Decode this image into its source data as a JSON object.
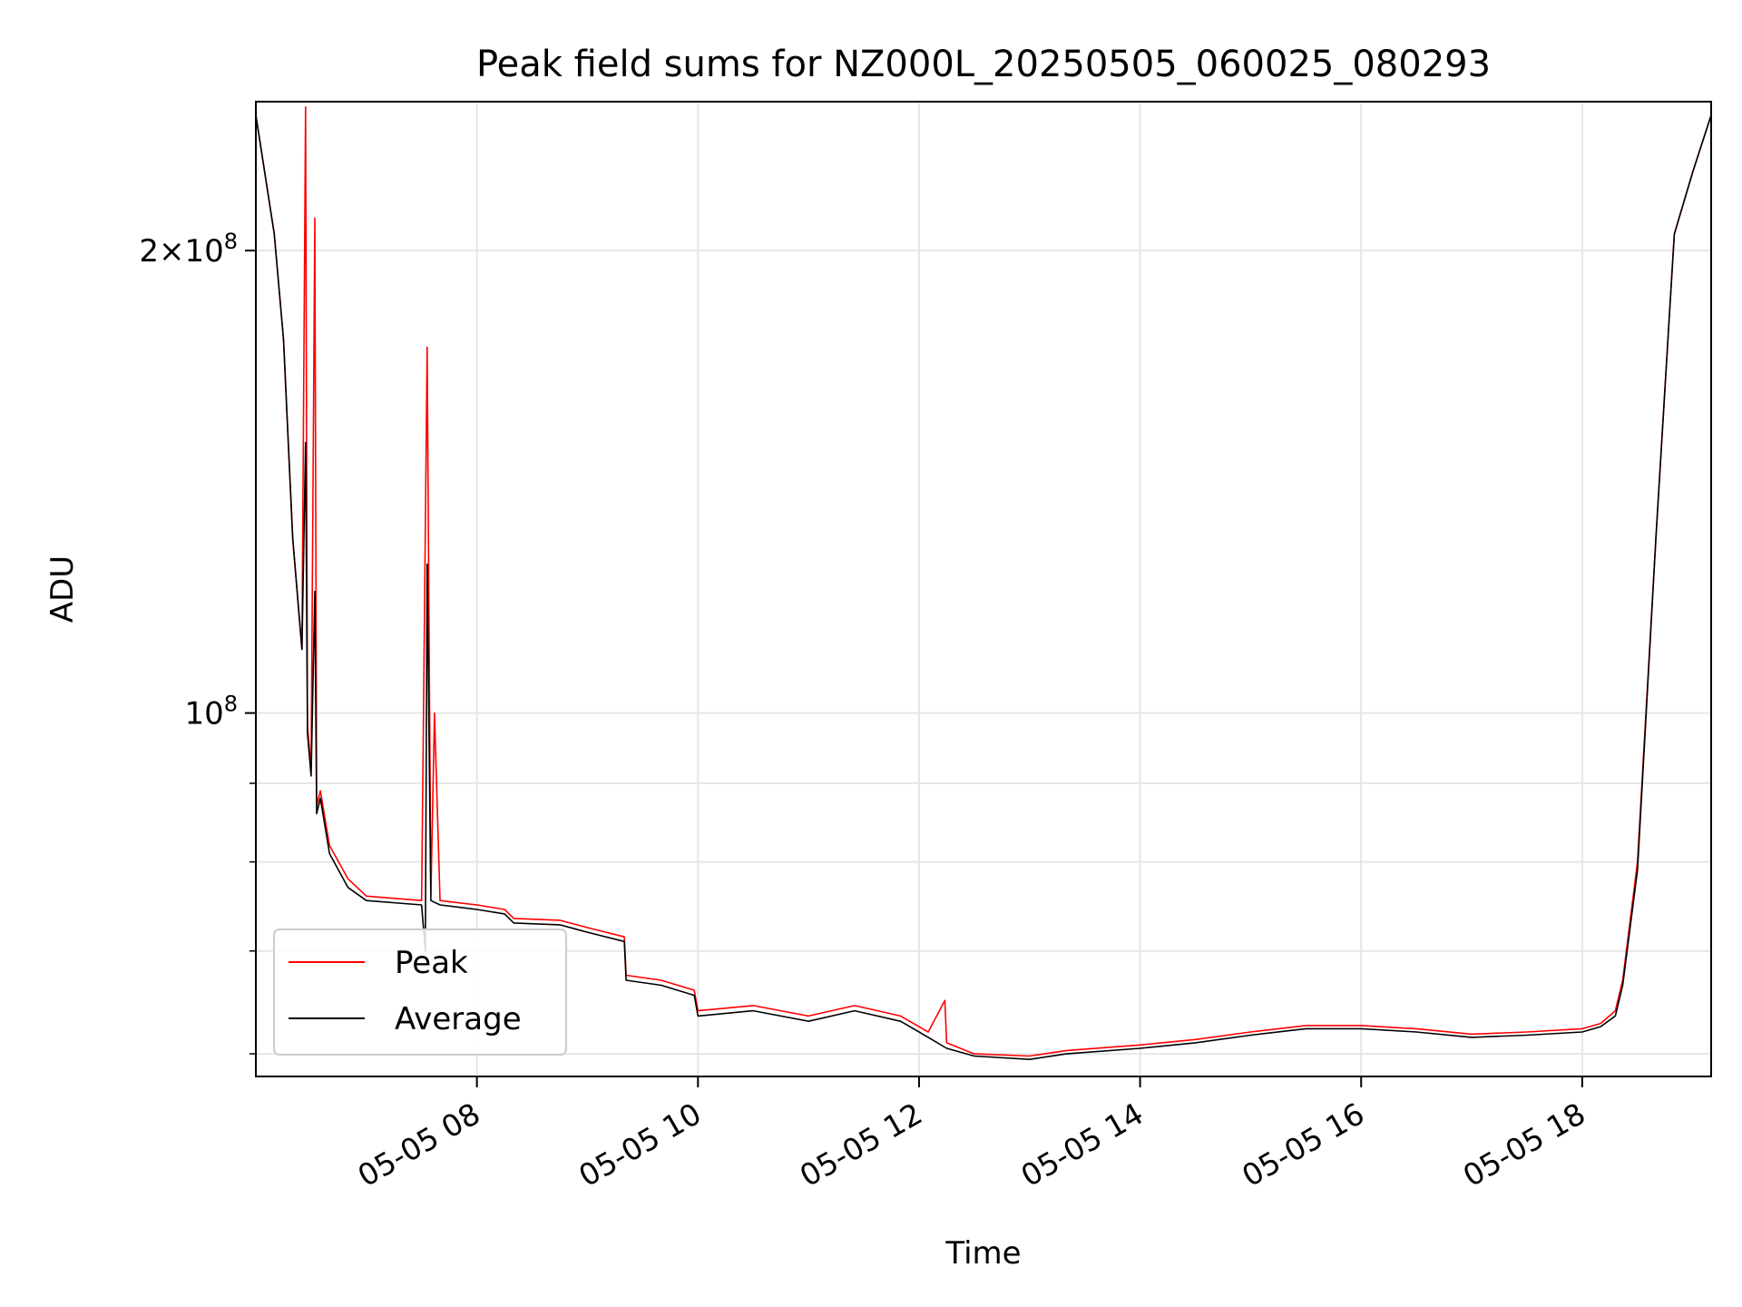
{
  "chart_data": {
    "type": "line",
    "title": "Peak field sums for NZ000L_20250505_060025_080293",
    "xlabel": "Time",
    "ylabel": "ADU",
    "yscale": "log",
    "xlim": [
      "2025-05-05 06:00",
      "2025-05-05 19:10"
    ],
    "ylim": [
      58000000,
      250000000
    ],
    "grid": true,
    "legend_position": "lower-left",
    "x_ticks": [
      {
        "value": "2025-05-05 08:00",
        "label": "05-05 08"
      },
      {
        "value": "2025-05-05 10:00",
        "label": "05-05 10"
      },
      {
        "value": "2025-05-05 12:00",
        "label": "05-05 12"
      },
      {
        "value": "2025-05-05 14:00",
        "label": "05-05 14"
      },
      {
        "value": "2025-05-05 16:00",
        "label": "05-05 16"
      },
      {
        "value": "2025-05-05 18:00",
        "label": "05-05 18"
      }
    ],
    "y_ticks": [
      {
        "value": 100000000,
        "base": "10",
        "exp": "8",
        "mult": ""
      },
      {
        "value": 200000000,
        "base": "10",
        "exp": "8",
        "mult": "2×"
      }
    ],
    "y_minor_ticks": [
      60000000,
      70000000,
      80000000,
      90000000
    ],
    "series": [
      {
        "name": "Peak",
        "color": "#ff0000",
        "points": [
          [
            "2025-05-05 06:00",
            245000000
          ],
          [
            "2025-05-05 06:10",
            205000000
          ],
          [
            "2025-05-05 06:15",
            175000000
          ],
          [
            "2025-05-05 06:20",
            130000000
          ],
          [
            "2025-05-05 06:25",
            110000000
          ],
          [
            "2025-05-05 06:27",
            248000000
          ],
          [
            "2025-05-05 06:28",
            98000000
          ],
          [
            "2025-05-05 06:30",
            92000000
          ],
          [
            "2025-05-05 06:32",
            210000000
          ],
          [
            "2025-05-05 06:33",
            87000000
          ],
          [
            "2025-05-05 06:35",
            89000000
          ],
          [
            "2025-05-05 06:40",
            82000000
          ],
          [
            "2025-05-05 06:50",
            78000000
          ],
          [
            "2025-05-05 07:00",
            76000000
          ],
          [
            "2025-05-05 07:30",
            75500000
          ],
          [
            "2025-05-05 07:33",
            173000000
          ],
          [
            "2025-05-05 07:35",
            76000000
          ],
          [
            "2025-05-05 07:37",
            100000000
          ],
          [
            "2025-05-05 07:40",
            75500000
          ],
          [
            "2025-05-05 08:00",
            75000000
          ],
          [
            "2025-05-05 08:15",
            74500000
          ],
          [
            "2025-05-05 08:20",
            73500000
          ],
          [
            "2025-05-05 08:45",
            73300000
          ],
          [
            "2025-05-05 09:00",
            72500000
          ],
          [
            "2025-05-05 09:20",
            71500000
          ],
          [
            "2025-05-05 09:21",
            67500000
          ],
          [
            "2025-05-05 09:40",
            67000000
          ],
          [
            "2025-05-05 09:58",
            66000000
          ],
          [
            "2025-05-05 10:00",
            64000000
          ],
          [
            "2025-05-05 10:30",
            64500000
          ],
          [
            "2025-05-05 11:00",
            63500000
          ],
          [
            "2025-05-05 11:25",
            64500000
          ],
          [
            "2025-05-05 11:50",
            63500000
          ],
          [
            "2025-05-05 12:05",
            62000000
          ],
          [
            "2025-05-05 12:14",
            65000000
          ],
          [
            "2025-05-05 12:15",
            61000000
          ],
          [
            "2025-05-05 12:30",
            60000000
          ],
          [
            "2025-05-05 13:00",
            59800000
          ],
          [
            "2025-05-05 13:20",
            60300000
          ],
          [
            "2025-05-05 14:00",
            60800000
          ],
          [
            "2025-05-05 14:30",
            61300000
          ],
          [
            "2025-05-05 15:00",
            62000000
          ],
          [
            "2025-05-05 15:30",
            62600000
          ],
          [
            "2025-05-05 16:00",
            62600000
          ],
          [
            "2025-05-05 16:30",
            62300000
          ],
          [
            "2025-05-05 17:00",
            61800000
          ],
          [
            "2025-05-05 17:30",
            62000000
          ],
          [
            "2025-05-05 18:00",
            62300000
          ],
          [
            "2025-05-05 18:10",
            62800000
          ],
          [
            "2025-05-05 18:18",
            64000000
          ],
          [
            "2025-05-05 18:22",
            67000000
          ],
          [
            "2025-05-05 18:30",
            80000000
          ],
          [
            "2025-05-05 18:40",
            130000000
          ],
          [
            "2025-05-05 18:50",
            205000000
          ],
          [
            "2025-05-05 19:00",
            225000000
          ],
          [
            "2025-05-05 19:10",
            245000000
          ]
        ]
      },
      {
        "name": "Average",
        "color": "#000000",
        "points": [
          [
            "2025-05-05 06:00",
            245000000
          ],
          [
            "2025-05-05 06:10",
            205000000
          ],
          [
            "2025-05-05 06:15",
            175000000
          ],
          [
            "2025-05-05 06:20",
            130000000
          ],
          [
            "2025-05-05 06:25",
            110000000
          ],
          [
            "2025-05-05 06:27",
            150000000
          ],
          [
            "2025-05-05 06:28",
            97000000
          ],
          [
            "2025-05-05 06:30",
            91000000
          ],
          [
            "2025-05-05 06:32",
            120000000
          ],
          [
            "2025-05-05 06:33",
            86000000
          ],
          [
            "2025-05-05 06:35",
            88000000
          ],
          [
            "2025-05-05 06:40",
            81000000
          ],
          [
            "2025-05-05 06:50",
            77000000
          ],
          [
            "2025-05-05 07:00",
            75500000
          ],
          [
            "2025-05-05 07:30",
            75000000
          ],
          [
            "2025-05-05 07:32",
            70000000
          ],
          [
            "2025-05-05 07:33",
            125000000
          ],
          [
            "2025-05-05 07:35",
            75500000
          ],
          [
            "2025-05-05 07:40",
            75000000
          ],
          [
            "2025-05-05 08:00",
            74500000
          ],
          [
            "2025-05-05 08:15",
            74000000
          ],
          [
            "2025-05-05 08:20",
            73000000
          ],
          [
            "2025-05-05 08:45",
            72800000
          ],
          [
            "2025-05-05 09:00",
            72000000
          ],
          [
            "2025-05-05 09:20",
            71000000
          ],
          [
            "2025-05-05 09:21",
            67000000
          ],
          [
            "2025-05-05 09:40",
            66500000
          ],
          [
            "2025-05-05 09:58",
            65500000
          ],
          [
            "2025-05-05 10:00",
            63500000
          ],
          [
            "2025-05-05 10:30",
            64000000
          ],
          [
            "2025-05-05 11:00",
            63000000
          ],
          [
            "2025-05-05 11:25",
            64000000
          ],
          [
            "2025-05-05 11:50",
            63000000
          ],
          [
            "2025-05-05 12:05",
            61500000
          ],
          [
            "2025-05-05 12:15",
            60500000
          ],
          [
            "2025-05-05 12:30",
            59800000
          ],
          [
            "2025-05-05 13:00",
            59500000
          ],
          [
            "2025-05-05 13:20",
            60000000
          ],
          [
            "2025-05-05 14:00",
            60500000
          ],
          [
            "2025-05-05 14:30",
            61000000
          ],
          [
            "2025-05-05 15:00",
            61700000
          ],
          [
            "2025-05-05 15:30",
            62300000
          ],
          [
            "2025-05-05 16:00",
            62300000
          ],
          [
            "2025-05-05 16:30",
            62000000
          ],
          [
            "2025-05-05 17:00",
            61500000
          ],
          [
            "2025-05-05 17:30",
            61700000
          ],
          [
            "2025-05-05 18:00",
            62000000
          ],
          [
            "2025-05-05 18:10",
            62500000
          ],
          [
            "2025-05-05 18:18",
            63500000
          ],
          [
            "2025-05-05 18:22",
            66500000
          ],
          [
            "2025-05-05 18:30",
            79000000
          ],
          [
            "2025-05-05 18:40",
            130000000
          ],
          [
            "2025-05-05 18:50",
            205000000
          ],
          [
            "2025-05-05 19:00",
            225000000
          ],
          [
            "2025-05-05 19:10",
            245000000
          ]
        ]
      }
    ]
  }
}
